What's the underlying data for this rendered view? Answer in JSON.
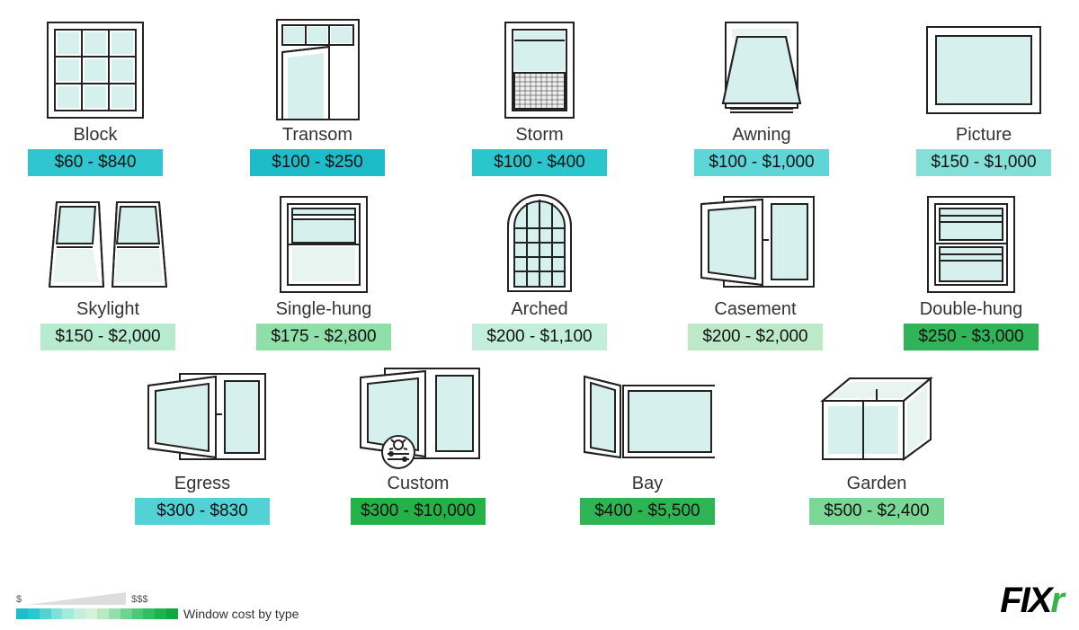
{
  "legend_text": "Window cost by type",
  "logo": {
    "text": "FIX",
    "accent": "r"
  },
  "gradient_colors": [
    "#1bbec9",
    "#29c8cf",
    "#4fd3d4",
    "#7fdfd9",
    "#a5e8dd",
    "#c2efde",
    "#d6f2d7",
    "#b9e9c3",
    "#93dea9",
    "#6fd390",
    "#4cc877",
    "#2fbe60",
    "#1cb34d",
    "#0fa73f"
  ],
  "items": [
    {
      "name": "Block",
      "price": "$60 - $840",
      "bg": "#2fc7cf"
    },
    {
      "name": "Transom",
      "price": "$100 - $250",
      "bg": "#1cbdc8"
    },
    {
      "name": "Storm",
      "price": "$100 - $400",
      "bg": "#29c6ce"
    },
    {
      "name": "Awning",
      "price": "$100 - $1,000",
      "bg": "#5ed5d6"
    },
    {
      "name": "Picture",
      "price": "$150 - $1,000",
      "bg": "#84dfd9"
    },
    {
      "name": "Skylight",
      "price": "$150 - $2,000",
      "bg": "#b6ebd0"
    },
    {
      "name": "Single-hung",
      "price": "$175 - $2,800",
      "bg": "#8fdfa9"
    },
    {
      "name": "Arched",
      "price": "$200 - $1,100",
      "bg": "#c2eedc"
    },
    {
      "name": "Casement",
      "price": "$200 - $2,000",
      "bg": "#bceac8"
    },
    {
      "name": "Double-hung",
      "price": "$250 - $3,000",
      "bg": "#2fb557"
    },
    {
      "name": "Egress",
      "price": "$300 - $830",
      "bg": "#53d2d5"
    },
    {
      "name": "Custom",
      "price": "$300 - $10,000",
      "bg": "#24b248"
    },
    {
      "name": "Bay",
      "price": "$400 - $5,500",
      "bg": "#2cb552"
    },
    {
      "name": "Garden",
      "price": "$500 - $2,400",
      "bg": "#7ad795"
    }
  ]
}
